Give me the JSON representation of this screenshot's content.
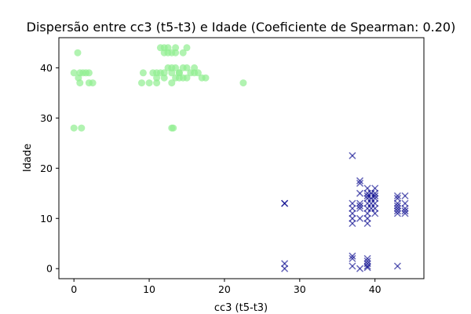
{
  "chart_data": {
    "type": "scatter",
    "title": "Dispersão entre cc3 (t5-t3) e Idade (Coeficiente de Spearman: 0.20)",
    "xlabel": "cc3 (t5-t3)",
    "ylabel": "Idade",
    "xlim": [
      -2,
      46.5
    ],
    "ylim": [
      -2,
      46
    ],
    "xticks": [
      0,
      10,
      20,
      30,
      40
    ],
    "yticks": [
      0,
      10,
      20,
      30,
      40
    ],
    "grid": false,
    "series": [
      {
        "marker": "circle",
        "color": "#90ee90",
        "points": [
          [
            0,
            28
          ],
          [
            1,
            28
          ],
          [
            0,
            39
          ],
          [
            0.5,
            43
          ],
          [
            0.6,
            38
          ],
          [
            0.8,
            37
          ],
          [
            0.8,
            39
          ],
          [
            1.2,
            39
          ],
          [
            1.6,
            39
          ],
          [
            2,
            39
          ],
          [
            2,
            37
          ],
          [
            2.5,
            37
          ],
          [
            9,
            37
          ],
          [
            9.2,
            39
          ],
          [
            10,
            37
          ],
          [
            10.5,
            39
          ],
          [
            11,
            38
          ],
          [
            11,
            37
          ],
          [
            11,
            39
          ],
          [
            11.5,
            44
          ],
          [
            11.5,
            39
          ],
          [
            12,
            43
          ],
          [
            12,
            44
          ],
          [
            12,
            38
          ],
          [
            12,
            39
          ],
          [
            12.5,
            40
          ],
          [
            12.5,
            43
          ],
          [
            12.5,
            44
          ],
          [
            13,
            37
          ],
          [
            13,
            43
          ],
          [
            13,
            40
          ],
          [
            13,
            39
          ],
          [
            13,
            28
          ],
          [
            13.2,
            28
          ],
          [
            13.5,
            38
          ],
          [
            13.5,
            43
          ],
          [
            13.5,
            44
          ],
          [
            13.5,
            40
          ],
          [
            14,
            39
          ],
          [
            14,
            38
          ],
          [
            14,
            39
          ],
          [
            14.5,
            38
          ],
          [
            14.5,
            43
          ],
          [
            14.5,
            40
          ],
          [
            15,
            44
          ],
          [
            15,
            38
          ],
          [
            15,
            40
          ],
          [
            15.5,
            39
          ],
          [
            16,
            40
          ],
          [
            16,
            39
          ],
          [
            16.5,
            39
          ],
          [
            17,
            38
          ],
          [
            17.5,
            38
          ],
          [
            22.5,
            37
          ]
        ]
      },
      {
        "marker": "x",
        "color": "#00008b",
        "points": [
          [
            28,
            13
          ],
          [
            28,
            13
          ],
          [
            28,
            1
          ],
          [
            28,
            0
          ],
          [
            37,
            22.5
          ],
          [
            37,
            13
          ],
          [
            37,
            12
          ],
          [
            37,
            11
          ],
          [
            37,
            10
          ],
          [
            37,
            9
          ],
          [
            37,
            2.5
          ],
          [
            37,
            2
          ],
          [
            37,
            0.5
          ],
          [
            38,
            17.5
          ],
          [
            38,
            17
          ],
          [
            38,
            15
          ],
          [
            38,
            13
          ],
          [
            38,
            12.5
          ],
          [
            38,
            12
          ],
          [
            38,
            10
          ],
          [
            38,
            0
          ],
          [
            39,
            16
          ],
          [
            39,
            15
          ],
          [
            39,
            14.5
          ],
          [
            39,
            14
          ],
          [
            39,
            13
          ],
          [
            39,
            12
          ],
          [
            39,
            11
          ],
          [
            39,
            10
          ],
          [
            39,
            9
          ],
          [
            39,
            2
          ],
          [
            39,
            1.5
          ],
          [
            39,
            1
          ],
          [
            39,
            0.5
          ],
          [
            39,
            0.2
          ],
          [
            39.5,
            15
          ],
          [
            39.5,
            14
          ],
          [
            39.5,
            13
          ],
          [
            39.5,
            12
          ],
          [
            40,
            16
          ],
          [
            40,
            15
          ],
          [
            40,
            14.5
          ],
          [
            40,
            14
          ],
          [
            40,
            13
          ],
          [
            40,
            12
          ],
          [
            40,
            11
          ],
          [
            43,
            14.5
          ],
          [
            43,
            14
          ],
          [
            43,
            13
          ],
          [
            43,
            12.5
          ],
          [
            43,
            12
          ],
          [
            43,
            11.5
          ],
          [
            43,
            11
          ],
          [
            43,
            0.5
          ],
          [
            44,
            14.5
          ],
          [
            44,
            13
          ],
          [
            44,
            12
          ],
          [
            44,
            11.5
          ],
          [
            44,
            11
          ]
        ]
      }
    ]
  }
}
